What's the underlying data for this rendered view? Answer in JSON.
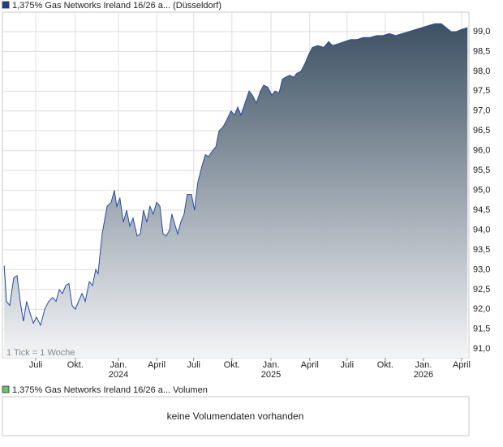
{
  "chart_data": {
    "type": "area",
    "title": "1,375% Gas Networks Ireland 16/26 a... (Düsseldorf)",
    "note": "1 Tick = 1 Woche",
    "legend_color": "#1c3f94",
    "line_color": "#2a4aa8",
    "fill_top": "#3d5163",
    "fill_bottom": "#f4f5f7",
    "xlim": [
      0,
      160
    ],
    "ylim": [
      90.78,
      99.49
    ],
    "grid": true,
    "xticks": [
      {
        "value": 11.4,
        "label": "Juli"
      },
      {
        "value": 25.0,
        "label": "Okt."
      },
      {
        "value": 39.8,
        "label": "Jan.",
        "sublabel": "2024"
      },
      {
        "value": 52.9,
        "label": "April"
      },
      {
        "value": 65.6,
        "label": "Juli"
      },
      {
        "value": 78.7,
        "label": "Okt."
      },
      {
        "value": 92.1,
        "label": "Jan.",
        "sublabel": "2025"
      },
      {
        "value": 105.4,
        "label": "April"
      },
      {
        "value": 118.2,
        "label": "Juli"
      },
      {
        "value": 131.3,
        "label": "Okt."
      },
      {
        "value": 144.4,
        "label": "Jan.",
        "sublabel": "2026"
      },
      {
        "value": 157.5,
        "label": "April"
      }
    ],
    "yticks": [
      {
        "value": 91.0,
        "label": "91,0"
      },
      {
        "value": 91.5,
        "label": "91,5"
      },
      {
        "value": 92.0,
        "label": "92,0"
      },
      {
        "value": 92.5,
        "label": "92,5"
      },
      {
        "value": 93.0,
        "label": "93,0"
      },
      {
        "value": 93.5,
        "label": "93,5"
      },
      {
        "value": 94.0,
        "label": "94,0"
      },
      {
        "value": 94.5,
        "label": "94,5"
      },
      {
        "value": 95.0,
        "label": "95,0"
      },
      {
        "value": 95.5,
        "label": "95,5"
      },
      {
        "value": 96.0,
        "label": "96,0"
      },
      {
        "value": 96.5,
        "label": "96,5"
      },
      {
        "value": 97.0,
        "label": "97,0"
      },
      {
        "value": 97.5,
        "label": "97,5"
      },
      {
        "value": 98.0,
        "label": "98,0"
      },
      {
        "value": 98.5,
        "label": "98,5"
      },
      {
        "value": 99.0,
        "label": "99,0"
      }
    ],
    "x": [
      0.6,
      1.4,
      2.5,
      3.9,
      5.0,
      6.1,
      7.2,
      8.3,
      9.5,
      10.6,
      11.7,
      13.1,
      14.5,
      15.9,
      17.2,
      18.4,
      19.5,
      20.6,
      21.7,
      22.8,
      23.9,
      25.0,
      26.1,
      27.3,
      28.4,
      29.8,
      30.9,
      32.0,
      32.8,
      34.2,
      35.9,
      37.3,
      38.4,
      39.2,
      40.3,
      41.5,
      42.6,
      43.7,
      44.8,
      46.2,
      47.3,
      48.4,
      49.5,
      50.6,
      51.7,
      52.9,
      54.0,
      55.1,
      56.2,
      57.3,
      58.1,
      59.3,
      60.1,
      61.2,
      62.3,
      63.4,
      64.8,
      65.9,
      67.0,
      68.4,
      69.6,
      70.7,
      72.1,
      73.2,
      74.3,
      75.7,
      77.1,
      78.4,
      79.6,
      80.7,
      81.8,
      83.2,
      84.6,
      85.7,
      87.1,
      88.5,
      89.6,
      91.0,
      92.4,
      93.5,
      94.9,
      96.0,
      97.1,
      98.5,
      99.9,
      101.0,
      102.4,
      103.8,
      104.9,
      106.3,
      108.2,
      110.2,
      111.9,
      113.2,
      115.5,
      117.4,
      119.4,
      121.6,
      123.8,
      126.0,
      128.3,
      130.5,
      132.7,
      134.9,
      137.2,
      139.4,
      141.6,
      143.8,
      146.1,
      148.3,
      150.5,
      152.2,
      153.9,
      155.7,
      157.3,
      159.5
    ],
    "values": [
      93.1,
      92.2,
      92.1,
      92.8,
      92.85,
      92.2,
      91.7,
      92.2,
      91.9,
      91.65,
      91.8,
      91.6,
      92.0,
      92.2,
      92.3,
      92.2,
      92.5,
      92.4,
      92.6,
      92.65,
      92.1,
      92.0,
      92.2,
      92.4,
      92.2,
      92.7,
      92.6,
      93.0,
      92.9,
      93.9,
      94.6,
      94.7,
      95.0,
      94.6,
      94.8,
      94.2,
      94.5,
      94.1,
      94.3,
      93.85,
      93.9,
      94.5,
      94.2,
      94.6,
      94.4,
      94.7,
      94.6,
      93.9,
      93.85,
      94.0,
      94.4,
      94.1,
      93.9,
      94.2,
      94.4,
      94.9,
      94.9,
      94.5,
      95.2,
      95.6,
      95.9,
      95.85,
      96.0,
      96.1,
      96.5,
      96.6,
      96.8,
      97.0,
      96.9,
      97.1,
      96.9,
      97.2,
      97.5,
      97.4,
      97.2,
      97.5,
      97.65,
      97.6,
      97.4,
      97.5,
      97.45,
      97.8,
      97.85,
      97.9,
      97.85,
      97.95,
      98.0,
      98.2,
      98.4,
      98.6,
      98.65,
      98.6,
      98.75,
      98.65,
      98.7,
      98.75,
      98.8,
      98.8,
      98.85,
      98.85,
      98.9,
      98.9,
      98.95,
      98.9,
      98.95,
      99.0,
      99.05,
      99.1,
      99.15,
      99.2,
      99.2,
      99.1,
      99.0,
      99.0,
      99.05,
      99.1
    ],
    "volume_legend": "1,375% Gas Networks Ireland 16/26 a... Volumen",
    "volume_legend_color": "#6cc06c",
    "volume_message": "keine Volumendaten vorhanden"
  }
}
